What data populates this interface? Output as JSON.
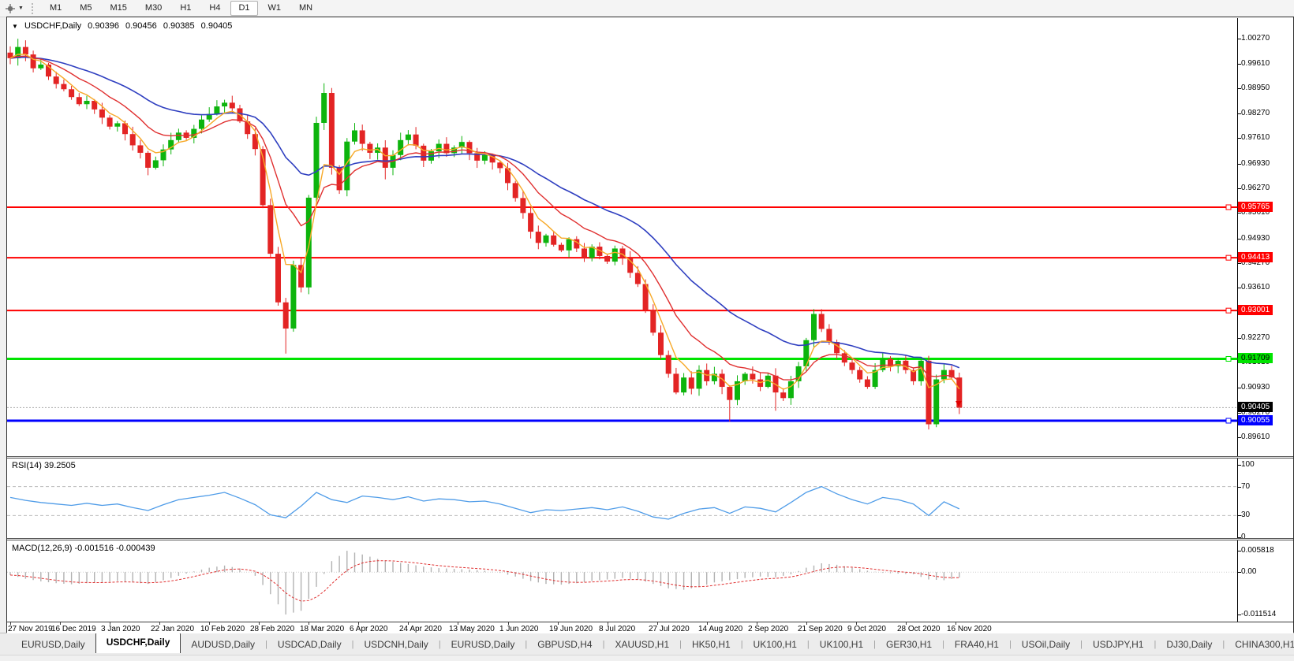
{
  "icons": {
    "collapse": "▼",
    "dropdown": "▼",
    "tab_scroll_left": "◂",
    "tab_scroll_right": "▸"
  },
  "toolbar": {
    "timeframes": [
      "M1",
      "M5",
      "M15",
      "M30",
      "H1",
      "H4",
      "D1",
      "W1",
      "MN"
    ],
    "active_timeframe": "D1"
  },
  "chart_header": {
    "symbol": "USDCHF,Daily",
    "open": "0.90396",
    "high": "0.90456",
    "low": "0.90385",
    "close": "0.90405"
  },
  "price_axis": {
    "ticks": [
      "1.00270",
      "0.99610",
      "0.98950",
      "0.98270",
      "0.97610",
      "0.96930",
      "0.96270",
      "0.95610",
      "0.94930",
      "0.94270",
      "0.93610",
      "0.92950",
      "0.92270",
      "0.91610",
      "0.90930",
      "0.90270",
      "0.89610"
    ],
    "current_price_label": "0.90405",
    "current_price_value": 0.90405
  },
  "rsi_panel": {
    "label": "RSI(14) 39.2505",
    "ticks": [
      {
        "t": "100",
        "v": 100
      },
      {
        "t": "70",
        "v": 70
      },
      {
        "t": "30",
        "v": 30
      },
      {
        "t": "0",
        "v": 0
      }
    ]
  },
  "macd_panel": {
    "label": "MACD(12,26,9) -0.001516 -0.000439",
    "ticks": [
      {
        "t": "0.005818",
        "v": 0.005818
      },
      {
        "t": "0.00",
        "v": 0
      },
      {
        "t": "-0.011514",
        "v": -0.011514
      }
    ]
  },
  "tabs": {
    "items": [
      "EURUSD,Daily",
      "USDCHF,Daily",
      "AUDUSD,Daily",
      "USDCAD,Daily",
      "USDCNH,Daily",
      "EURUSD,Daily",
      "GBPUSD,H4",
      "XAUUSD,H1",
      "HK50,H1",
      "UK100,H1",
      "UK100,H1",
      "GER30,H1",
      "FRA40,H1",
      "USOil,Daily",
      "USDJPY,H1",
      "DJ30,Daily",
      "CHINA300,H1",
      "USOil,H1"
    ],
    "active_index": 1
  },
  "colors": {
    "candle_up": "#0db40d",
    "candle_down": "#e32424",
    "ma_fast": "#f7a928",
    "ma_medium": "#e03030",
    "ma_slow": "#2f3fc0",
    "rsi_line": "#4f9ce8",
    "macd_bar": "#b2b2b2",
    "macd_signal": "#e03030",
    "level_red": "#ff0000",
    "level_green": "#00e400",
    "level_blue": "#0000ff",
    "current_price_bg": "#000000"
  },
  "chart_data": {
    "type": "candlestick",
    "symbol": "USDCHF",
    "timeframe": "Daily",
    "ohlc_current": {
      "open": 0.90396,
      "high": 0.90456,
      "low": 0.90385,
      "close": 0.90405
    },
    "x_dates": [
      "27 Nov 2019",
      "16 Dec 2019",
      "3 Jan 2020",
      "22 Jan 2020",
      "10 Feb 2020",
      "28 Feb 2020",
      "18 Mar 2020",
      "6 Apr 2020",
      "24 Apr 2020",
      "13 May 2020",
      "1 Jun 2020",
      "19 Jun 2020",
      "8 Jul 2020",
      "27 Jul 2020",
      "14 Aug 2020",
      "2 Sep 2020",
      "21 Sep 2020",
      "9 Oct 2020",
      "28 Oct 2020",
      "16 Nov 2020"
    ],
    "first_open": 0.999,
    "closes": [
      0.9975,
      1.0005,
      0.9985,
      0.9948,
      0.9958,
      0.9926,
      0.9906,
      0.9892,
      0.9871,
      0.9852,
      0.9861,
      0.9838,
      0.9816,
      0.9792,
      0.9801,
      0.9772,
      0.9742,
      0.9722,
      0.9682,
      0.9702,
      0.9731,
      0.9756,
      0.9776,
      0.9762,
      0.9786,
      0.9811,
      0.9826,
      0.9846,
      0.9856,
      0.9841,
      0.9806,
      0.9772,
      0.9732,
      0.9582,
      0.9452,
      0.9322,
      0.9252,
      0.9422,
      0.9362,
      0.9602,
      0.9802,
      0.9882,
      0.9682,
      0.9622,
      0.9752,
      0.9782,
      0.9746,
      0.9722,
      0.9736,
      0.9682,
      0.9716,
      0.9756,
      0.9771,
      0.9741,
      0.9701,
      0.9726,
      0.9746,
      0.9721,
      0.9736,
      0.9751,
      0.9721,
      0.9701,
      0.9716,
      0.9696,
      0.9681,
      0.9641,
      0.9601,
      0.9561,
      0.9511,
      0.9481,
      0.9501,
      0.9476,
      0.9461,
      0.9491,
      0.9466,
      0.9441,
      0.9471,
      0.9446,
      0.9431,
      0.9466,
      0.9441,
      0.9401,
      0.9371,
      0.9301,
      0.9241,
      0.9181,
      0.9131,
      0.9081,
      0.9121,
      0.9091,
      0.9141,
      0.9111,
      0.9131,
      0.9096,
      0.9061,
      0.9111,
      0.9131,
      0.9116,
      0.9096,
      0.9126,
      0.9081,
      0.9066,
      0.9111,
      0.9151,
      0.9221,
      0.9291,
      0.9251,
      0.9216,
      0.9186,
      0.9161,
      0.9141,
      0.9116,
      0.9096,
      0.9141,
      0.9171,
      0.9151,
      0.9166,
      0.9141,
      0.9111,
      0.9166,
      0.8996,
      0.9116,
      0.9141,
      0.9121,
      0.90405
    ],
    "wick_overrides": {
      "1": {
        "high": 1.0027
      },
      "18": {
        "low": 0.9662
      },
      "36": {
        "low": 0.9185
      },
      "41": {
        "high": 0.9908
      },
      "49": {
        "low": 0.9651
      },
      "94": {
        "low": 0.9003
      },
      "100": {
        "low": 0.9032
      },
      "105": {
        "high": 0.9304
      },
      "120": {
        "low": 0.8982
      }
    },
    "levels": [
      {
        "text": "0.95765",
        "value": 0.95765,
        "color": "#ff0000",
        "text_color": "#ffffff",
        "width": 2
      },
      {
        "text": "0.94413",
        "value": 0.94413,
        "color": "#ff0000",
        "text_color": "#ffffff",
        "width": 2
      },
      {
        "text": "0.93001",
        "value": 0.93001,
        "color": "#ff0000",
        "text_color": "#ffffff",
        "width": 2
      },
      {
        "text": "0.91709",
        "value": 0.91709,
        "color": "#00e400",
        "text_color": "#000000",
        "width": 3
      },
      {
        "text": "0.90055",
        "value": 0.90055,
        "color": "#0000ff",
        "text_color": "#ffffff",
        "width": 3
      }
    ],
    "moving_averages": [
      {
        "name": "fast",
        "color": "#f7a928"
      },
      {
        "name": "medium",
        "color": "#e03030"
      },
      {
        "name": "slow",
        "color": "#2f3fc0"
      }
    ],
    "rsi": {
      "period": 14,
      "current": 39.2505,
      "range": [
        0,
        100
      ],
      "guide_levels": [
        70,
        30
      ],
      "values_every_2_candles": [
        55,
        51,
        48,
        46,
        44,
        47,
        44,
        46,
        41,
        37,
        45,
        52,
        55,
        58,
        62,
        54,
        45,
        31,
        27,
        43,
        62,
        52,
        48,
        57,
        55,
        52,
        56,
        50,
        53,
        52,
        49,
        50,
        46,
        40,
        34,
        38,
        37,
        39,
        41,
        38,
        42,
        36,
        28,
        25,
        33,
        39,
        41,
        33,
        42,
        40,
        35,
        48,
        62,
        70,
        60,
        52,
        46,
        55,
        52,
        46,
        30,
        49,
        39.25
      ]
    },
    "macd": {
      "params": "12,26,9",
      "macd_current": -0.001516,
      "signal_current": -0.000439,
      "range": [
        -0.011514,
        0.005818
      ],
      "hist_every_2_candles": [
        -0.0008,
        -0.0018,
        -0.0025,
        -0.003,
        -0.0033,
        -0.003,
        -0.0028,
        -0.0024,
        -0.0028,
        -0.0032,
        -0.0022,
        -0.001,
        0.0002,
        0.0012,
        0.0018,
        0.001,
        -0.001,
        -0.006,
        -0.0115,
        -0.0105,
        -0.004,
        0.003,
        0.0058,
        0.0048,
        0.0036,
        0.0028,
        0.0022,
        0.0015,
        0.0011,
        0.0009,
        0.0007,
        0.0004,
        -0.0002,
        -0.0012,
        -0.0024,
        -0.0032,
        -0.0034,
        -0.003,
        -0.0024,
        -0.002,
        -0.0016,
        -0.002,
        -0.0032,
        -0.0044,
        -0.0048,
        -0.004,
        -0.0028,
        -0.0022,
        -0.0016,
        -0.0012,
        -0.0014,
        -0.0006,
        0.0012,
        0.0024,
        0.002,
        0.0012,
        0.0004,
        -0.0002,
        -0.0004,
        -0.0006,
        -0.002,
        -0.0022,
        -0.0015
      ]
    }
  }
}
